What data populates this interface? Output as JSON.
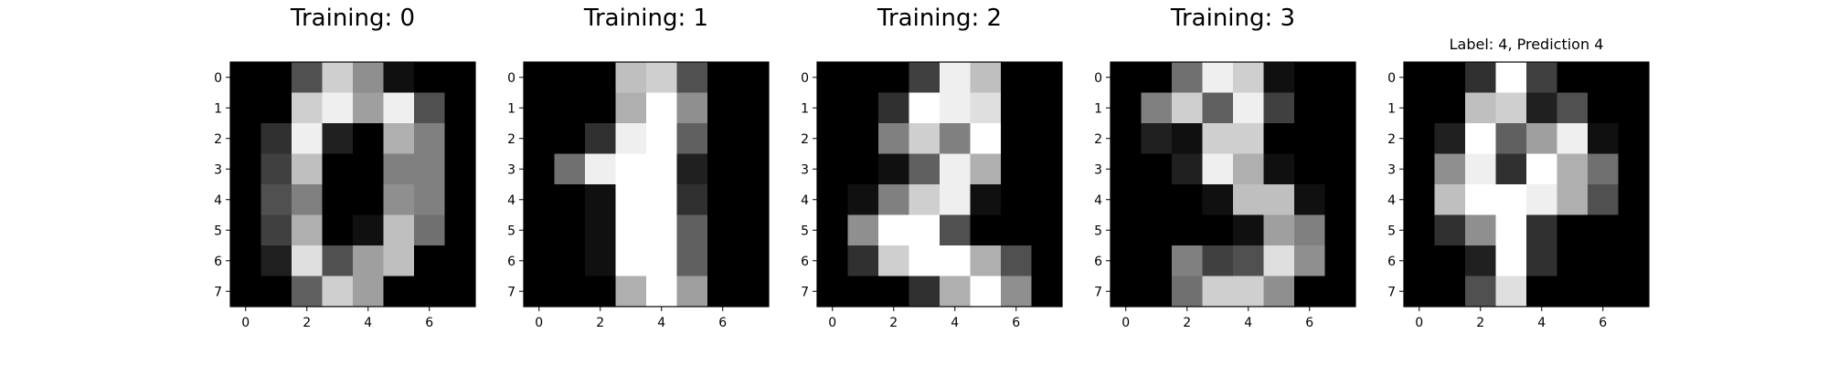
{
  "chart_data": [
    {
      "type": "heatmap",
      "title": "Training: 0",
      "colormap": "gray_r",
      "vmin": 0,
      "vmax": 16,
      "xticks": [
        "0",
        "2",
        "4",
        "6"
      ],
      "yticks": [
        "0",
        "1",
        "2",
        "3",
        "4",
        "5",
        "6",
        "7"
      ],
      "values": [
        [
          0,
          0,
          5,
          13,
          9,
          1,
          0,
          0
        ],
        [
          0,
          0,
          13,
          15,
          10,
          15,
          5,
          0
        ],
        [
          0,
          3,
          15,
          2,
          0,
          11,
          8,
          0
        ],
        [
          0,
          4,
          12,
          0,
          0,
          8,
          8,
          0
        ],
        [
          0,
          5,
          8,
          0,
          0,
          9,
          8,
          0
        ],
        [
          0,
          4,
          11,
          0,
          1,
          12,
          7,
          0
        ],
        [
          0,
          2,
          14,
          5,
          10,
          12,
          0,
          0
        ],
        [
          0,
          0,
          6,
          13,
          10,
          0,
          0,
          0
        ]
      ]
    },
    {
      "type": "heatmap",
      "title": "Training: 1",
      "colormap": "gray_r",
      "vmin": 0,
      "vmax": 16,
      "xticks": [
        "0",
        "2",
        "4",
        "6"
      ],
      "yticks": [
        "0",
        "1",
        "2",
        "3",
        "4",
        "5",
        "6",
        "7"
      ],
      "values": [
        [
          0,
          0,
          0,
          12,
          13,
          5,
          0,
          0
        ],
        [
          0,
          0,
          0,
          11,
          16,
          9,
          0,
          0
        ],
        [
          0,
          0,
          3,
          15,
          16,
          6,
          0,
          0
        ],
        [
          0,
          7,
          15,
          16,
          16,
          2,
          0,
          0
        ],
        [
          0,
          0,
          1,
          16,
          16,
          3,
          0,
          0
        ],
        [
          0,
          0,
          1,
          16,
          16,
          6,
          0,
          0
        ],
        [
          0,
          0,
          1,
          16,
          16,
          6,
          0,
          0
        ],
        [
          0,
          0,
          0,
          11,
          16,
          10,
          0,
          0
        ]
      ]
    },
    {
      "type": "heatmap",
      "title": "Training: 2",
      "colormap": "gray_r",
      "vmin": 0,
      "vmax": 16,
      "xticks": [
        "0",
        "2",
        "4",
        "6"
      ],
      "yticks": [
        "0",
        "1",
        "2",
        "3",
        "4",
        "5",
        "6",
        "7"
      ],
      "values": [
        [
          0,
          0,
          0,
          4,
          15,
          12,
          0,
          0
        ],
        [
          0,
          0,
          3,
          16,
          15,
          14,
          0,
          0
        ],
        [
          0,
          0,
          8,
          13,
          8,
          16,
          0,
          0
        ],
        [
          0,
          0,
          1,
          6,
          15,
          11,
          0,
          0
        ],
        [
          0,
          1,
          8,
          13,
          15,
          1,
          0,
          0
        ],
        [
          0,
          9,
          16,
          16,
          5,
          0,
          0,
          0
        ],
        [
          0,
          3,
          13,
          16,
          16,
          11,
          5,
          0
        ],
        [
          0,
          0,
          0,
          3,
          11,
          16,
          9,
          0
        ]
      ]
    },
    {
      "type": "heatmap",
      "title": "Training: 3",
      "colormap": "gray_r",
      "vmin": 0,
      "vmax": 16,
      "xticks": [
        "0",
        "2",
        "4",
        "6"
      ],
      "yticks": [
        "0",
        "1",
        "2",
        "3",
        "4",
        "5",
        "6",
        "7"
      ],
      "values": [
        [
          0,
          0,
          7,
          15,
          13,
          1,
          0,
          0
        ],
        [
          0,
          8,
          13,
          6,
          15,
          4,
          0,
          0
        ],
        [
          0,
          2,
          1,
          13,
          13,
          0,
          0,
          0
        ],
        [
          0,
          0,
          2,
          15,
          11,
          1,
          0,
          0
        ],
        [
          0,
          0,
          0,
          1,
          12,
          12,
          1,
          0
        ],
        [
          0,
          0,
          0,
          0,
          1,
          10,
          8,
          0
        ],
        [
          0,
          0,
          8,
          4,
          5,
          14,
          9,
          0
        ],
        [
          0,
          0,
          7,
          13,
          13,
          9,
          0,
          0
        ]
      ]
    },
    {
      "type": "heatmap",
      "title": "Label: 4, Prediction 4",
      "colormap": "gray_r",
      "vmin": 0,
      "vmax": 16,
      "xticks": [
        "0",
        "2",
        "4",
        "6"
      ],
      "yticks": [
        "0",
        "1",
        "2",
        "3",
        "4",
        "5",
        "6",
        "7"
      ],
      "values": [
        [
          0,
          0,
          3,
          16,
          4,
          0,
          0,
          0
        ],
        [
          0,
          0,
          12,
          13,
          2,
          5,
          0,
          0
        ],
        [
          0,
          2,
          16,
          6,
          10,
          15,
          1,
          0
        ],
        [
          0,
          9,
          15,
          3,
          16,
          11,
          7,
          0
        ],
        [
          0,
          12,
          16,
          16,
          15,
          11,
          5,
          0
        ],
        [
          0,
          3,
          9,
          16,
          3,
          0,
          0,
          0
        ],
        [
          0,
          0,
          2,
          16,
          3,
          0,
          0,
          0
        ],
        [
          0,
          0,
          5,
          14,
          0,
          0,
          0,
          0
        ]
      ]
    }
  ]
}
